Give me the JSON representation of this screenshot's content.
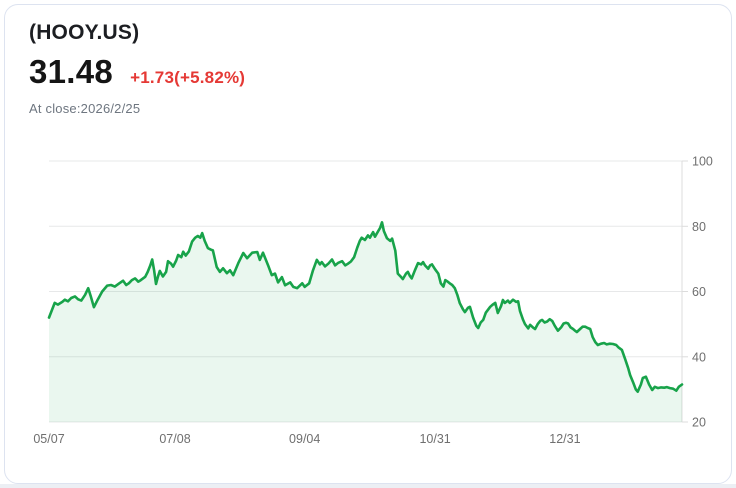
{
  "card": {
    "title": "(HOOY.US)",
    "price": "31.48",
    "change": "+1.73(+5.82%)",
    "as_of": "At close:2026/2/25"
  },
  "colors": {
    "up_red": "#e53935",
    "line_green": "#18a34a",
    "area_fill": "rgba(24,163,74,0.09)",
    "grid": "#e7e8e9",
    "axis_line": "#dcdcdc",
    "axis_text": "#6f6f6f",
    "card_border": "#dde3f0"
  },
  "chart_data": {
    "type": "area",
    "title": "",
    "xlabel": "",
    "ylabel": "",
    "grid": "horizontal-only",
    "legend": "none",
    "y_axis_side": "right",
    "ylim": [
      20,
      100
    ],
    "y_ticks": [
      100,
      80,
      60,
      40,
      20
    ],
    "x_ticks": [
      {
        "label": "05/07",
        "f": 0.0
      },
      {
        "label": "07/08",
        "f": 0.199
      },
      {
        "label": "09/04",
        "f": 0.404
      },
      {
        "label": "10/31",
        "f": 0.61
      },
      {
        "label": "12/31",
        "f": 0.815
      }
    ],
    "series_name": "HOOY.US close price",
    "last_value": 31.48,
    "points": [
      [
        0.0,
        52.0
      ],
      [
        0.005,
        54.5
      ],
      [
        0.009,
        56.5
      ],
      [
        0.014,
        56.0
      ],
      [
        0.021,
        56.8
      ],
      [
        0.025,
        57.5
      ],
      [
        0.03,
        57.0
      ],
      [
        0.035,
        58.0
      ],
      [
        0.041,
        58.5
      ],
      [
        0.046,
        57.6
      ],
      [
        0.051,
        57.2
      ],
      [
        0.057,
        59.0
      ],
      [
        0.062,
        61.0
      ],
      [
        0.066,
        58.5
      ],
      [
        0.071,
        55.2
      ],
      [
        0.077,
        57.5
      ],
      [
        0.084,
        60.0
      ],
      [
        0.092,
        61.8
      ],
      [
        0.098,
        62.0
      ],
      [
        0.104,
        61.5
      ],
      [
        0.111,
        62.5
      ],
      [
        0.117,
        63.3
      ],
      [
        0.122,
        62.0
      ],
      [
        0.126,
        62.5
      ],
      [
        0.131,
        63.5
      ],
      [
        0.136,
        64.0
      ],
      [
        0.141,
        63.0
      ],
      [
        0.145,
        63.5
      ],
      [
        0.152,
        64.5
      ],
      [
        0.156,
        66.0
      ],
      [
        0.16,
        68.0
      ],
      [
        0.163,
        69.8
      ],
      [
        0.166,
        66.5
      ],
      [
        0.169,
        62.3
      ],
      [
        0.172,
        64.5
      ],
      [
        0.175,
        66.3
      ],
      [
        0.18,
        64.6
      ],
      [
        0.185,
        66.0
      ],
      [
        0.188,
        69.3
      ],
      [
        0.193,
        68.5
      ],
      [
        0.196,
        67.6
      ],
      [
        0.201,
        69.5
      ],
      [
        0.204,
        71.2
      ],
      [
        0.209,
        70.5
      ],
      [
        0.212,
        72.2
      ],
      [
        0.216,
        71.0
      ],
      [
        0.221,
        72.3
      ],
      [
        0.226,
        75.3
      ],
      [
        0.231,
        76.5
      ],
      [
        0.235,
        77.0
      ],
      [
        0.239,
        76.5
      ],
      [
        0.242,
        77.9
      ],
      [
        0.246,
        75.5
      ],
      [
        0.251,
        73.3
      ],
      [
        0.256,
        72.8
      ],
      [
        0.259,
        72.6
      ],
      [
        0.265,
        67.5
      ],
      [
        0.27,
        66.0
      ],
      [
        0.275,
        67.1
      ],
      [
        0.281,
        65.6
      ],
      [
        0.286,
        66.5
      ],
      [
        0.291,
        65.0
      ],
      [
        0.299,
        68.7
      ],
      [
        0.307,
        71.8
      ],
      [
        0.313,
        70.2
      ],
      [
        0.321,
        71.9
      ],
      [
        0.329,
        72.1
      ],
      [
        0.333,
        69.7
      ],
      [
        0.338,
        71.9
      ],
      [
        0.346,
        68.1
      ],
      [
        0.352,
        65.0
      ],
      [
        0.357,
        65.5
      ],
      [
        0.362,
        62.8
      ],
      [
        0.368,
        64.4
      ],
      [
        0.373,
        61.9
      ],
      [
        0.381,
        62.8
      ],
      [
        0.386,
        61.4
      ],
      [
        0.392,
        61.0
      ],
      [
        0.4,
        62.5
      ],
      [
        0.404,
        61.4
      ],
      [
        0.411,
        62.5
      ],
      [
        0.417,
        66.5
      ],
      [
        0.423,
        69.7
      ],
      [
        0.428,
        68.3
      ],
      [
        0.431,
        69.0
      ],
      [
        0.436,
        67.7
      ],
      [
        0.441,
        68.5
      ],
      [
        0.447,
        69.8
      ],
      [
        0.452,
        68.0
      ],
      [
        0.457,
        68.8
      ],
      [
        0.463,
        69.3
      ],
      [
        0.468,
        68.0
      ],
      [
        0.472,
        68.5
      ],
      [
        0.477,
        69.2
      ],
      [
        0.482,
        70.5
      ],
      [
        0.487,
        73.5
      ],
      [
        0.491,
        75.5
      ],
      [
        0.494,
        76.5
      ],
      [
        0.499,
        75.8
      ],
      [
        0.504,
        77.2
      ],
      [
        0.507,
        76.5
      ],
      [
        0.512,
        78.2
      ],
      [
        0.515,
        76.8
      ],
      [
        0.52,
        78.5
      ],
      [
        0.523,
        79.5
      ],
      [
        0.526,
        81.2
      ],
      [
        0.529,
        78.5
      ],
      [
        0.534,
        76.3
      ],
      [
        0.539,
        75.5
      ],
      [
        0.542,
        76.2
      ],
      [
        0.547,
        72.5
      ],
      [
        0.551,
        65.5
      ],
      [
        0.556,
        64.5
      ],
      [
        0.559,
        63.8
      ],
      [
        0.564,
        65.5
      ],
      [
        0.567,
        66.0
      ],
      [
        0.57,
        64.8
      ],
      [
        0.573,
        64.0
      ],
      [
        0.578,
        66.5
      ],
      [
        0.583,
        68.7
      ],
      [
        0.588,
        68.3
      ],
      [
        0.591,
        69.0
      ],
      [
        0.594,
        68.0
      ],
      [
        0.599,
        67.0
      ],
      [
        0.602,
        68.0
      ],
      [
        0.605,
        68.3
      ],
      [
        0.61,
        66.8
      ],
      [
        0.615,
        65.5
      ],
      [
        0.619,
        62.5
      ],
      [
        0.623,
        61.5
      ],
      [
        0.626,
        63.5
      ],
      [
        0.63,
        63.0
      ],
      [
        0.633,
        62.5
      ],
      [
        0.637,
        62.0
      ],
      [
        0.641,
        61.0
      ],
      [
        0.645,
        59.0
      ],
      [
        0.649,
        56.4
      ],
      [
        0.654,
        54.5
      ],
      [
        0.657,
        53.7
      ],
      [
        0.662,
        55.0
      ],
      [
        0.665,
        55.3
      ],
      [
        0.67,
        52.0
      ],
      [
        0.675,
        49.5
      ],
      [
        0.678,
        48.8
      ],
      [
        0.682,
        50.5
      ],
      [
        0.686,
        51.3
      ],
      [
        0.69,
        53.5
      ],
      [
        0.697,
        55.3
      ],
      [
        0.701,
        56.0
      ],
      [
        0.705,
        56.5
      ],
      [
        0.709,
        53.4
      ],
      [
        0.714,
        55.5
      ],
      [
        0.717,
        57.4
      ],
      [
        0.72,
        56.5
      ],
      [
        0.725,
        57.2
      ],
      [
        0.728,
        56.5
      ],
      [
        0.733,
        57.5
      ],
      [
        0.738,
        56.8
      ],
      [
        0.741,
        57.0
      ],
      [
        0.744,
        54.0
      ],
      [
        0.749,
        51.3
      ],
      [
        0.752,
        50.0
      ],
      [
        0.757,
        48.7
      ],
      [
        0.76,
        49.8
      ],
      [
        0.765,
        48.9
      ],
      [
        0.768,
        48.5
      ],
      [
        0.772,
        50.0
      ],
      [
        0.776,
        51.0
      ],
      [
        0.779,
        51.3
      ],
      [
        0.783,
        50.5
      ],
      [
        0.787,
        50.8
      ],
      [
        0.791,
        51.5
      ],
      [
        0.795,
        51.0
      ],
      [
        0.799,
        49.5
      ],
      [
        0.804,
        48.0
      ],
      [
        0.809,
        49.0
      ],
      [
        0.813,
        50.2
      ],
      [
        0.817,
        50.4
      ],
      [
        0.82,
        50.2
      ],
      [
        0.824,
        49.0
      ],
      [
        0.828,
        48.5
      ],
      [
        0.831,
        48.0
      ],
      [
        0.834,
        47.6
      ],
      [
        0.839,
        48.5
      ],
      [
        0.843,
        49.2
      ],
      [
        0.847,
        49.2
      ],
      [
        0.851,
        48.8
      ],
      [
        0.855,
        48.5
      ],
      [
        0.859,
        46.0
      ],
      [
        0.863,
        44.5
      ],
      [
        0.867,
        43.6
      ],
      [
        0.872,
        44.0
      ],
      [
        0.877,
        44.2
      ],
      [
        0.881,
        43.8
      ],
      [
        0.886,
        44.0
      ],
      [
        0.891,
        43.9
      ],
      [
        0.896,
        43.6
      ],
      [
        0.9,
        42.8
      ],
      [
        0.905,
        42.1
      ],
      [
        0.91,
        39.4
      ],
      [
        0.915,
        36.5
      ],
      [
        0.918,
        34.4
      ],
      [
        0.923,
        32.0
      ],
      [
        0.927,
        30.0
      ],
      [
        0.93,
        29.3
      ],
      [
        0.935,
        31.5
      ],
      [
        0.938,
        33.5
      ],
      [
        0.943,
        33.9
      ],
      [
        0.948,
        31.5
      ],
      [
        0.953,
        29.8
      ],
      [
        0.957,
        30.8
      ],
      [
        0.962,
        30.4
      ],
      [
        0.967,
        30.6
      ],
      [
        0.972,
        30.5
      ],
      [
        0.976,
        30.7
      ],
      [
        0.981,
        30.4
      ],
      [
        0.986,
        30.2
      ],
      [
        0.991,
        29.6
      ],
      [
        0.995,
        30.8
      ],
      [
        1.0,
        31.48
      ]
    ]
  }
}
